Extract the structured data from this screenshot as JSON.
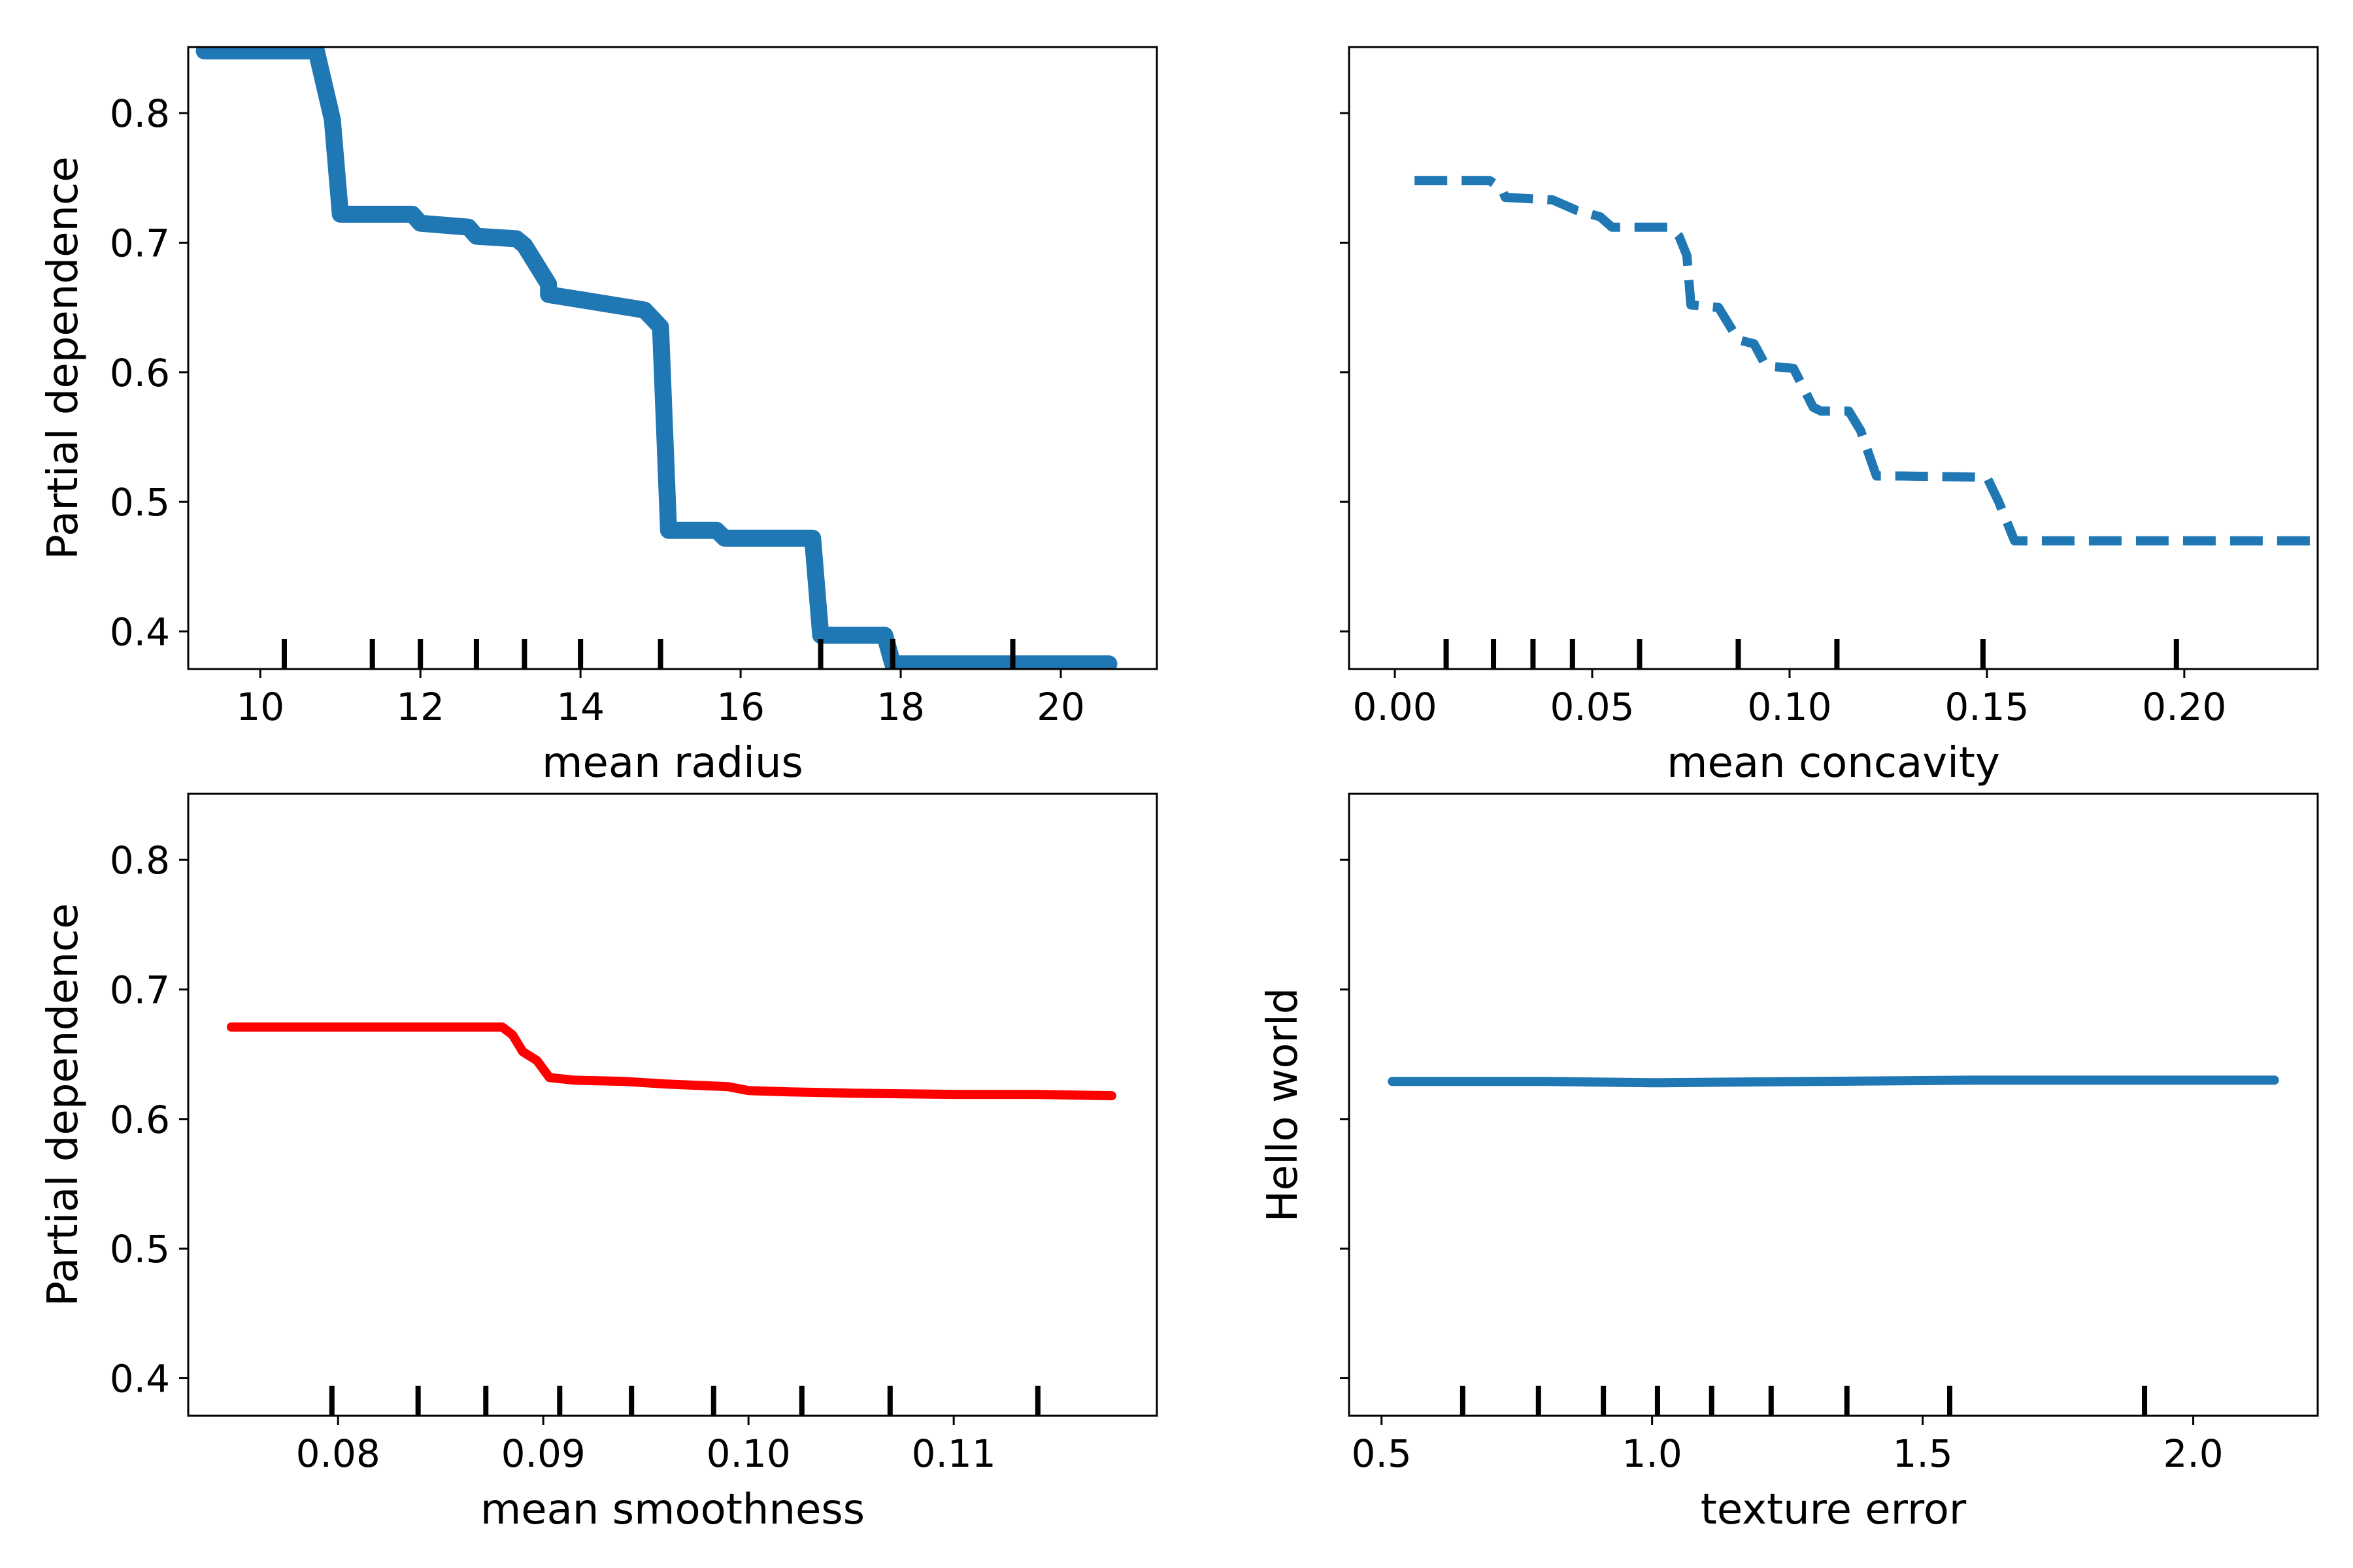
{
  "figure": {
    "background": "#ffffff"
  },
  "chart_data": [
    {
      "type": "line",
      "title": "",
      "xlabel": "mean radius",
      "ylabel": "Partial dependence",
      "xlim": [
        9.1,
        21.2
      ],
      "ylim": [
        0.371,
        0.851
      ],
      "xticks": [
        10,
        12,
        14,
        16,
        18,
        20
      ],
      "xtick_labels": [
        "10",
        "12",
        "14",
        "16",
        "18",
        "20"
      ],
      "yticks": [
        0.4,
        0.5,
        0.6,
        0.7,
        0.8
      ],
      "ytick_labels": [
        "0.4",
        "0.5",
        "0.6",
        "0.7",
        "0.8"
      ],
      "show_yticklabels": true,
      "style": {
        "color": "#1f77b4",
        "line": "solid",
        "width": "thick"
      },
      "deciles": [
        10.3,
        11.4,
        12.0,
        12.7,
        13.3,
        14.0,
        15.0,
        17.0,
        17.9,
        19.4
      ],
      "series": [
        {
          "x": [
            9.3,
            10.7,
            10.9,
            11.0,
            11.9,
            12.0,
            12.6,
            12.7,
            13.2,
            13.3,
            13.6,
            13.6,
            14.6,
            14.8,
            15.0,
            15.1,
            15.2,
            15.7,
            15.8,
            16.9,
            17.0,
            17.8,
            17.9,
            20.6
          ],
          "y": [
            0.848,
            0.848,
            0.795,
            0.722,
            0.722,
            0.715,
            0.712,
            0.705,
            0.703,
            0.698,
            0.668,
            0.66,
            0.65,
            0.648,
            0.635,
            0.478,
            0.478,
            0.478,
            0.472,
            0.472,
            0.397,
            0.397,
            0.375,
            0.375
          ]
        }
      ]
    },
    {
      "type": "line",
      "title": "",
      "xlabel": "mean concavity",
      "ylabel": "",
      "xlim": [
        -0.0116,
        0.2338
      ],
      "ylim": [
        0.371,
        0.851
      ],
      "xticks": [
        0.0,
        0.05,
        0.1,
        0.15,
        0.2
      ],
      "xtick_labels": [
        "0.00",
        "0.05",
        "0.10",
        "0.15",
        "0.20"
      ],
      "yticks": [
        0.4,
        0.5,
        0.6,
        0.7,
        0.8
      ],
      "ytick_labels": [
        "",
        "",
        "",
        "",
        ""
      ],
      "show_yticklabels": false,
      "style": {
        "color": "#1f77b4",
        "line": "dashed",
        "width": "medium"
      },
      "deciles": [
        0.013,
        0.025,
        0.035,
        0.045,
        0.062,
        0.087,
        0.112,
        0.149,
        0.198
      ],
      "series": [
        {
          "x": [
            0.005,
            0.024,
            0.027,
            0.028,
            0.04,
            0.046,
            0.052,
            0.055,
            0.07,
            0.072,
            0.074,
            0.075,
            0.082,
            0.087,
            0.091,
            0.094,
            0.101,
            0.104,
            0.106,
            0.108,
            0.115,
            0.118,
            0.122,
            0.128,
            0.15,
            0.153,
            0.157,
            0.232
          ],
          "y": [
            0.748,
            0.748,
            0.742,
            0.735,
            0.733,
            0.725,
            0.72,
            0.712,
            0.712,
            0.705,
            0.69,
            0.652,
            0.65,
            0.625,
            0.622,
            0.605,
            0.603,
            0.585,
            0.573,
            0.57,
            0.57,
            0.555,
            0.52,
            0.52,
            0.519,
            0.5,
            0.47,
            0.47
          ]
        }
      ]
    },
    {
      "type": "line",
      "title": "",
      "xlabel": "mean smoothness",
      "ylabel": "Partial dependence",
      "xlim": [
        0.0727,
        0.1199
      ],
      "ylim": [
        0.371,
        0.851
      ],
      "xticks": [
        0.08,
        0.09,
        0.1,
        0.11
      ],
      "xtick_labels": [
        "0.08",
        "0.09",
        "0.10",
        "0.11"
      ],
      "yticks": [
        0.4,
        0.5,
        0.6,
        0.7,
        0.8
      ],
      "ytick_labels": [
        "0.4",
        "0.5",
        "0.6",
        "0.7",
        "0.8"
      ],
      "show_yticklabels": true,
      "style": {
        "color": "#ff0000",
        "line": "solid",
        "width": "medium"
      },
      "deciles": [
        0.0797,
        0.0839,
        0.0872,
        0.0908,
        0.0943,
        0.0983,
        0.1026,
        0.1069,
        0.1141
      ],
      "series": [
        {
          "x": [
            0.0748,
            0.088,
            0.0885,
            0.089,
            0.0897,
            0.0903,
            0.0915,
            0.094,
            0.096,
            0.099,
            0.1,
            0.102,
            0.105,
            0.11,
            0.114,
            0.1177
          ],
          "y": [
            0.671,
            0.671,
            0.665,
            0.652,
            0.645,
            0.632,
            0.63,
            0.629,
            0.627,
            0.625,
            0.622,
            0.621,
            0.62,
            0.619,
            0.619,
            0.618
          ]
        }
      ]
    },
    {
      "type": "line",
      "title": "",
      "xlabel": "texture error",
      "ylabel": "Hello world",
      "xlim": [
        0.44,
        2.23
      ],
      "ylim": [
        0.371,
        0.851
      ],
      "xticks": [
        0.5,
        1.0,
        1.5,
        2.0
      ],
      "xtick_labels": [
        "0.5",
        "1.0",
        "1.5",
        "2.0"
      ],
      "yticks": [
        0.4,
        0.5,
        0.6,
        0.7,
        0.8
      ],
      "ytick_labels": [
        "",
        "",
        "",
        "",
        ""
      ],
      "show_yticklabels": false,
      "style": {
        "color": "#1f77b4",
        "line": "solid",
        "width": "medium"
      },
      "deciles": [
        0.65,
        0.79,
        0.91,
        1.01,
        1.11,
        1.22,
        1.36,
        1.55,
        1.91
      ],
      "series": [
        {
          "x": [
            0.52,
            0.8,
            1.0,
            1.3,
            1.6,
            2.15
          ],
          "y": [
            0.629,
            0.629,
            0.628,
            0.629,
            0.63,
            0.63
          ]
        }
      ]
    }
  ]
}
